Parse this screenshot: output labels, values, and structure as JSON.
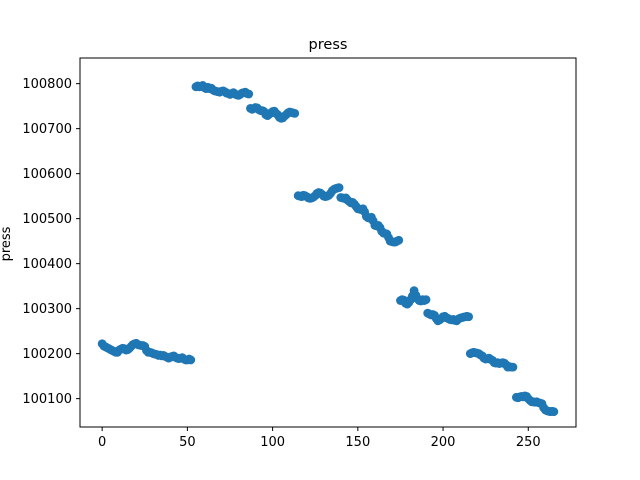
{
  "chart_data": {
    "type": "scatter",
    "title": "press",
    "xlabel": "",
    "ylabel": "press",
    "xlim": [
      -13,
      278
    ],
    "ylim": [
      100037,
      100857
    ],
    "xticks": [
      0,
      50,
      100,
      150,
      200,
      250
    ],
    "yticks": [
      100100,
      100200,
      100300,
      100400,
      100500,
      100600,
      100700,
      100800
    ],
    "grid": false,
    "color": "#1f77b4",
    "series": [
      {
        "x": [
          0,
          1,
          2,
          3,
          4,
          5,
          6,
          7,
          8,
          9,
          10,
          11,
          12,
          13,
          14,
          15,
          16,
          17,
          18,
          19,
          20,
          21,
          22,
          23,
          24,
          25,
          26,
          27,
          28,
          29,
          30,
          31,
          32,
          33,
          34,
          35,
          36,
          37,
          38,
          39,
          40,
          41,
          42,
          43,
          44,
          45,
          46,
          47,
          48,
          49,
          50,
          51,
          52,
          55,
          56,
          57,
          58,
          59,
          60,
          61,
          62,
          63,
          64,
          65,
          66,
          67,
          68,
          69,
          70,
          71,
          72,
          73,
          74,
          75,
          76,
          77,
          78,
          79,
          80,
          81,
          82,
          83,
          84,
          85,
          86,
          87,
          88,
          89,
          90,
          91,
          92,
          93,
          94,
          95,
          96,
          97,
          98,
          99,
          100,
          101,
          102,
          103,
          104,
          105,
          106,
          107,
          108,
          109,
          110,
          111,
          112,
          113,
          115,
          116,
          117,
          118,
          119,
          120,
          121,
          122,
          123,
          124,
          125,
          126,
          127,
          128,
          129,
          130,
          131,
          132,
          133,
          134,
          135,
          136,
          137,
          138,
          139,
          140,
          141,
          142,
          143,
          144,
          145,
          146,
          147,
          148,
          149,
          150,
          151,
          152,
          153,
          154,
          155,
          156,
          157,
          158,
          159,
          160,
          161,
          162,
          163,
          164,
          165,
          166,
          167,
          168,
          169,
          170,
          171,
          172,
          173,
          174,
          175,
          176,
          177,
          178,
          179,
          180,
          181,
          182,
          183,
          184,
          185,
          186,
          187,
          188,
          189,
          190,
          191,
          192,
          193,
          194,
          195,
          196,
          197,
          198,
          199,
          200,
          201,
          202,
          203,
          204,
          205,
          206,
          207,
          208,
          209,
          210,
          211,
          212,
          213,
          214,
          215,
          216,
          217,
          218,
          219,
          220,
          221,
          222,
          223,
          224,
          225,
          226,
          227,
          228,
          229,
          230,
          231,
          232,
          233,
          234,
          235,
          236,
          237,
          238,
          239,
          240,
          241,
          243,
          244,
          245,
          246,
          247,
          248,
          249,
          250,
          251,
          252,
          253,
          254,
          255,
          256,
          257,
          258,
          259,
          260,
          261,
          262,
          263,
          264,
          265
        ],
        "y": [
          100222,
          100217,
          100215,
          100213,
          100211,
          100209,
          100207,
          100205,
          100203,
          100203,
          100208,
          100210,
          100212,
          100211,
          100208,
          100209,
          100212,
          100216,
          100220,
          100222,
          100223,
          100220,
          100219,
          100218,
          100218,
          100216,
          100207,
          100203,
          100203,
          100202,
          100200,
          100199,
          100198,
          100196,
          100197,
          100195,
          100196,
          100194,
          100192,
          100190,
          100192,
          100194,
          100195,
          100192,
          100190,
          100189,
          100190,
          100191,
          100188,
          100186,
          100186,
          100188,
          100186,
          100793,
          100795,
          100793,
          100794,
          100796,
          100791,
          100789,
          100792,
          100789,
          100790,
          100786,
          100784,
          100783,
          100782,
          100781,
          100783,
          100784,
          100782,
          100779,
          100778,
          100776,
          100778,
          100780,
          100777,
          100775,
          100774,
          100776,
          100779,
          100780,
          100781,
          100778,
          100777,
          100745,
          100743,
          100745,
          100747,
          100746,
          100742,
          100740,
          100740,
          100738,
          100731,
          100729,
          100732,
          100735,
          100738,
          100739,
          100734,
          100731,
          100725,
          100723,
          100724,
          100728,
          100731,
          100735,
          100737,
          100736,
          100735,
          100734,
          100551,
          100550,
          100549,
          100552,
          100551,
          100549,
          100546,
          100545,
          100546,
          100548,
          100551,
          100556,
          100558,
          100557,
          100554,
          100550,
          100549,
          100550,
          100552,
          100556,
          100562,
          100565,
          100567,
          100568,
          100569,
          100547,
          100546,
          100545,
          100546,
          100541,
          100538,
          100535,
          100536,
          100532,
          100527,
          100522,
          100521,
          100520,
          100522,
          100515,
          100505,
          100502,
          100501,
          100503,
          100495,
          100485,
          100484,
          100485,
          100480,
          100472,
          100468,
          100467,
          100466,
          100458,
          100450,
          100449,
          100448,
          100448,
          100450,
          100452,
          100318,
          100320,
          100319,
          100312,
          100310,
          100314,
          100320,
          100328,
          100340,
          100330,
          100322,
          100318,
          100317,
          100320,
          100318,
          100320,
          100290,
          100288,
          100286,
          100287,
          100285,
          100278,
          100273,
          100275,
          100278,
          100282,
          100283,
          100280,
          100278,
          100276,
          100275,
          100276,
          100274,
          100273,
          100277,
          100279,
          100280,
          100281,
          100282,
          100283,
          100282,
          100200,
          100202,
          100203,
          100202,
          100201,
          100200,
          100197,
          100195,
          100190,
          100188,
          100189,
          100190,
          100187,
          100185,
          100180,
          100179,
          100180,
          100178,
          100179,
          100180,
          100179,
          100175,
          100170,
          100171,
          100170,
          100170,
          100103,
          100102,
          100104,
          100105,
          100104,
          100106,
          100105,
          100100,
          100096,
          100093,
          100093,
          100092,
          100093,
          100091,
          100090,
          100089,
          100080,
          100075,
          100073,
          100072,
          100071,
          100072,
          100071
        ]
      }
    ]
  }
}
